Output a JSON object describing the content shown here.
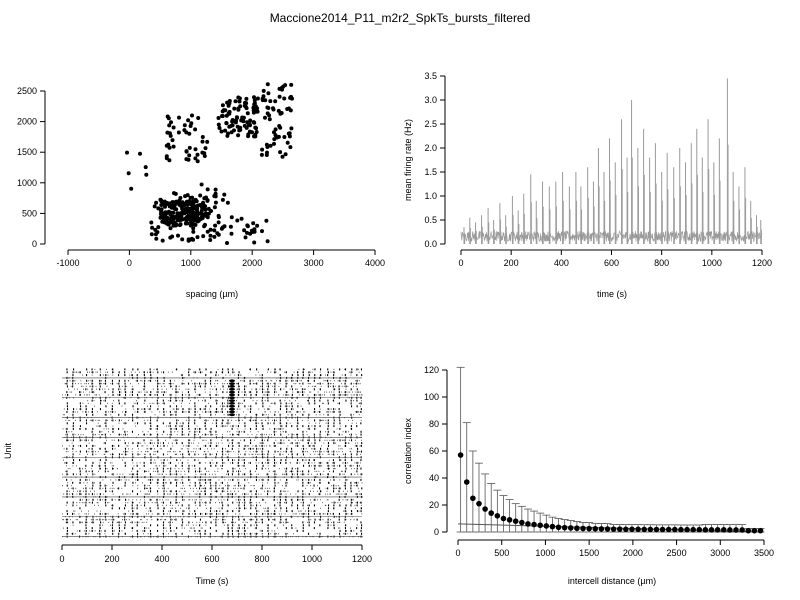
{
  "title": "Maccione2014_P11_m2r2_SpkTs_bursts_filtered",
  "chart_data": [
    {
      "type": "scatter",
      "xlabel": "spacing (µm)",
      "ylabel": "",
      "xlim": [
        -1000,
        4000
      ],
      "ylim": [
        0,
        2500
      ],
      "xticks": [
        -1000,
        0,
        1000,
        2000,
        3000,
        4000
      ],
      "yticks": [
        0,
        500,
        1000,
        1500,
        2000,
        2500
      ],
      "grid": false,
      "marker_color": "#000000",
      "clusters": [
        {
          "x": [
            500,
            1250
          ],
          "y": [
            300,
            700
          ],
          "n": 180
        },
        {
          "x": [
            350,
            1500
          ],
          "y": [
            50,
            850
          ],
          "n": 90
        },
        {
          "x": [
            1450,
            2100
          ],
          "y": [
            1750,
            2400
          ],
          "n": 95
        },
        {
          "x": [
            600,
            1300
          ],
          "y": [
            1350,
            2150
          ],
          "n": 45
        },
        {
          "x": [
            2150,
            2650
          ],
          "y": [
            1400,
            2650
          ],
          "n": 60
        },
        {
          "x": [
            1500,
            2300
          ],
          "y": [
            0,
            450
          ],
          "n": 25
        },
        {
          "x": [
            1050,
            1650
          ],
          "y": [
            500,
            1000
          ],
          "n": 12
        },
        {
          "x": [
            -50,
            300
          ],
          "y": [
            900,
            1600
          ],
          "n": 6
        }
      ]
    },
    {
      "type": "line",
      "xlabel": "time (s)",
      "ylabel": "mean firing rate (Hz)",
      "xlim": [
        0,
        1200
      ],
      "ylim": [
        0,
        3.5
      ],
      "xticks": [
        0,
        200,
        400,
        600,
        800,
        1000,
        1200
      ],
      "yticks": [
        0.0,
        0.5,
        1.0,
        1.5,
        2.0,
        2.5,
        3.0,
        3.5
      ],
      "ytick_labels": [
        "0.0",
        "0.5",
        "1.0",
        "1.5",
        "2.0",
        "2.5",
        "3.0",
        "3.5"
      ],
      "grid": false,
      "line_color": "#9a9a9a",
      "baseline": 0.22,
      "peaks": [
        {
          "x": 12,
          "y": 0.35
        },
        {
          "x": 35,
          "y": 0.55
        },
        {
          "x": 58,
          "y": 0.45
        },
        {
          "x": 82,
          "y": 0.6
        },
        {
          "x": 108,
          "y": 0.75
        },
        {
          "x": 130,
          "y": 0.5
        },
        {
          "x": 155,
          "y": 0.85
        },
        {
          "x": 178,
          "y": 0.6
        },
        {
          "x": 205,
          "y": 1.0
        },
        {
          "x": 228,
          "y": 0.7
        },
        {
          "x": 250,
          "y": 1.05
        },
        {
          "x": 278,
          "y": 1.45
        },
        {
          "x": 300,
          "y": 0.9
        },
        {
          "x": 325,
          "y": 1.3
        },
        {
          "x": 352,
          "y": 1.2
        },
        {
          "x": 378,
          "y": 1.3
        },
        {
          "x": 405,
          "y": 1.5
        },
        {
          "x": 432,
          "y": 1.2
        },
        {
          "x": 458,
          "y": 1.5
        },
        {
          "x": 478,
          "y": 1.2
        },
        {
          "x": 505,
          "y": 1.6
        },
        {
          "x": 528,
          "y": 1.3
        },
        {
          "x": 548,
          "y": 2.0
        },
        {
          "x": 570,
          "y": 1.5
        },
        {
          "x": 592,
          "y": 2.2
        },
        {
          "x": 615,
          "y": 1.7
        },
        {
          "x": 640,
          "y": 2.6
        },
        {
          "x": 662,
          "y": 1.8
        },
        {
          "x": 680,
          "y": 3.0
        },
        {
          "x": 705,
          "y": 2.0
        },
        {
          "x": 728,
          "y": 2.4
        },
        {
          "x": 752,
          "y": 1.8
        },
        {
          "x": 775,
          "y": 2.1
        },
        {
          "x": 800,
          "y": 1.5
        },
        {
          "x": 822,
          "y": 1.9
        },
        {
          "x": 848,
          "y": 1.6
        },
        {
          "x": 872,
          "y": 2.0
        },
        {
          "x": 895,
          "y": 1.7
        },
        {
          "x": 918,
          "y": 2.1
        },
        {
          "x": 940,
          "y": 2.4
        },
        {
          "x": 962,
          "y": 1.8
        },
        {
          "x": 985,
          "y": 2.6
        },
        {
          "x": 1008,
          "y": 1.7
        },
        {
          "x": 1030,
          "y": 2.2
        },
        {
          "x": 1062,
          "y": 3.45
        },
        {
          "x": 1085,
          "y": 1.5
        },
        {
          "x": 1108,
          "y": 1.2
        },
        {
          "x": 1132,
          "y": 1.6
        },
        {
          "x": 1155,
          "y": 0.9
        },
        {
          "x": 1178,
          "y": 0.6
        },
        {
          "x": 1195,
          "y": 0.5
        }
      ]
    },
    {
      "type": "raster",
      "xlabel": "Time (s)",
      "ylabel": "Unit",
      "xlim": [
        0,
        1200
      ],
      "xticks": [
        0,
        200,
        400,
        600,
        800,
        1000,
        1200
      ],
      "n_units": 60,
      "grid": false,
      "marker_color": "#000000",
      "burst_times": [
        18,
        42,
        70,
        95,
        120,
        150,
        172,
        200,
        226,
        250,
        280,
        300,
        328,
        352,
        380,
        405,
        432,
        455,
        480,
        505,
        530,
        550,
        572,
        592,
        615,
        640,
        662,
        680,
        705,
        728,
        752,
        775,
        800,
        822,
        848,
        872,
        895,
        918,
        940,
        962,
        985,
        1008,
        1030,
        1062,
        1085,
        1108,
        1132,
        1155,
        1178,
        1195
      ],
      "dense_event": {
        "x": 680,
        "units": [
          4,
          16
        ]
      }
    },
    {
      "type": "scatter",
      "subtype": "errorbar",
      "xlabel": "intercell distance (µm)",
      "ylabel": "correlation index",
      "xlim": [
        0,
        3500
      ],
      "ylim": [
        0,
        120
      ],
      "xticks": [
        0,
        500,
        1000,
        1500,
        2000,
        2500,
        3000,
        3500
      ],
      "yticks": [
        0,
        20,
        40,
        60,
        80,
        100,
        120
      ],
      "grid": false,
      "marker_color": "#000000",
      "error_color": "#555555",
      "fit_line": {
        "x": [
          0,
          3500
        ],
        "y": [
          6,
          0
        ]
      },
      "x": [
        30,
        100,
        170,
        240,
        310,
        380,
        450,
        520,
        590,
        660,
        730,
        800,
        870,
        940,
        1010,
        1080,
        1150,
        1220,
        1290,
        1360,
        1430,
        1500,
        1570,
        1640,
        1710,
        1780,
        1850,
        1920,
        1990,
        2060,
        2130,
        2200,
        2270,
        2340,
        2410,
        2480,
        2550,
        2620,
        2690,
        2760,
        2830,
        2900,
        2970,
        3040,
        3110,
        3180,
        3250,
        3320,
        3390,
        3460
      ],
      "y": [
        57,
        37,
        25,
        21,
        17,
        14,
        12,
        10,
        9,
        8,
        7,
        6,
        5.5,
        5,
        4.5,
        4,
        3.5,
        3.2,
        3,
        2.8,
        2.6,
        2.5,
        2.4,
        2.3,
        2.2,
        2.1,
        2.1,
        2,
        2,
        2,
        1.9,
        1.9,
        1.8,
        1.8,
        1.8,
        1.8,
        1.7,
        1.7,
        1.7,
        1.7,
        1.6,
        1.6,
        1.6,
        1.6,
        1.5,
        1.5,
        1.5,
        1,
        1,
        1
      ],
      "err": [
        65,
        44,
        35,
        30,
        26,
        22,
        19,
        17,
        15,
        13,
        12,
        11,
        10,
        9,
        8,
        7,
        6.5,
        6,
        5.5,
        5,
        4.5,
        4.5,
        4,
        4,
        4,
        3.5,
        3.5,
        3.5,
        3.5,
        3.5,
        3.5,
        3.5,
        3.5,
        3.5,
        3.5,
        3.5,
        3.5,
        3.5,
        3.5,
        3.5,
        4,
        4,
        4,
        4,
        4,
        4,
        4,
        1.5,
        1.5,
        1.5
      ]
    }
  ]
}
